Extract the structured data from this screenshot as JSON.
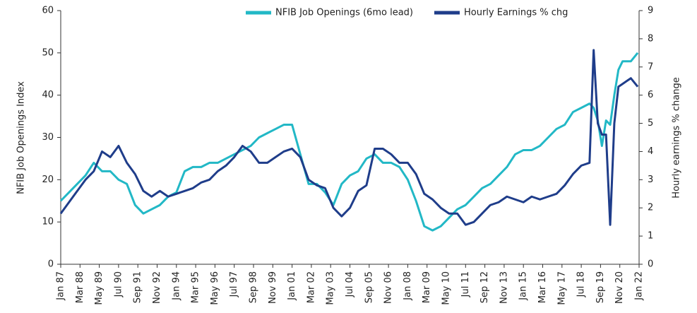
{
  "chart_data": {
    "type": "line",
    "ylabel": "NFIB Job Openings Index",
    "y2label": "Hourly earnings % change",
    "x": [
      "1987-01",
      "1987-07",
      "1988-01",
      "1988-07",
      "1989-01",
      "1989-07",
      "1990-01",
      "1990-07",
      "1991-01",
      "1991-07",
      "1992-01",
      "1992-07",
      "1993-01",
      "1993-07",
      "1994-01",
      "1994-07",
      "1995-01",
      "1995-07",
      "1996-01",
      "1996-07",
      "1997-01",
      "1997-07",
      "1998-01",
      "1998-07",
      "1999-01",
      "1999-07",
      "2000-01",
      "2000-07",
      "2001-01",
      "2001-07",
      "2002-01",
      "2002-07",
      "2003-01",
      "2003-07",
      "2004-01",
      "2004-07",
      "2005-01",
      "2005-07",
      "2006-01",
      "2006-07",
      "2007-01",
      "2007-07",
      "2008-01",
      "2008-07",
      "2009-01",
      "2009-07",
      "2010-01",
      "2010-07",
      "2011-01",
      "2011-07",
      "2012-01",
      "2012-07",
      "2013-01",
      "2013-07",
      "2014-01",
      "2014-07",
      "2015-01",
      "2015-07",
      "2016-01",
      "2016-07",
      "2017-01",
      "2017-07",
      "2018-01",
      "2018-07",
      "2019-01",
      "2019-04",
      "2019-07",
      "2019-10",
      "2020-01",
      "2020-04",
      "2020-07",
      "2020-10",
      "2021-01",
      "2021-07",
      "2021-12"
    ],
    "series": [
      {
        "name": "NFIB Job Openings (6mo lead)",
        "color": "#22b8c6",
        "axis": "y",
        "values": [
          15,
          17,
          19,
          21,
          24,
          22,
          22,
          20,
          19,
          14,
          12,
          13,
          14,
          16,
          17,
          22,
          23,
          23,
          24,
          24,
          25,
          26,
          27,
          28,
          30,
          31,
          32,
          33,
          33,
          26,
          19,
          19,
          17,
          14,
          19,
          21,
          22,
          25,
          26,
          24,
          24,
          23,
          20,
          15,
          9,
          8,
          9,
          11,
          13,
          14,
          16,
          18,
          19,
          21,
          23,
          26,
          27,
          27,
          28,
          30,
          32,
          33,
          36,
          37,
          38,
          37,
          34,
          28,
          34,
          33,
          40,
          46,
          48,
          48,
          50
        ]
      },
      {
        "name": "Hourly Earnings % chg",
        "color": "#1f3d8a",
        "axis": "y2",
        "values": [
          1.8,
          2.2,
          2.6,
          3.0,
          3.3,
          4.0,
          3.8,
          4.2,
          3.6,
          3.2,
          2.6,
          2.4,
          2.6,
          2.4,
          2.5,
          2.6,
          2.7,
          2.9,
          3.0,
          3.3,
          3.5,
          3.8,
          4.2,
          4.0,
          3.6,
          3.6,
          3.8,
          4.0,
          4.1,
          3.8,
          3.0,
          2.8,
          2.7,
          2.0,
          1.7,
          2.0,
          2.6,
          2.8,
          4.1,
          4.1,
          3.9,
          3.6,
          3.6,
          3.2,
          2.5,
          2.3,
          2.0,
          1.8,
          1.8,
          1.4,
          1.5,
          1.8,
          2.1,
          2.2,
          2.4,
          2.3,
          2.2,
          2.4,
          2.3,
          2.4,
          2.5,
          2.8,
          3.2,
          3.5,
          3.6,
          7.6,
          5.0,
          4.6,
          4.6,
          1.4,
          5.0,
          6.3,
          6.4,
          6.6,
          6.3
        ]
      }
    ],
    "xlim": [
      "1987-01",
      "2022-01"
    ],
    "xticks": [
      {
        "value": "1987-01",
        "label": "Jan 87"
      },
      {
        "value": "1988-03",
        "label": "Mar 88"
      },
      {
        "value": "1989-05",
        "label": "May 89"
      },
      {
        "value": "1990-07",
        "label": "Jul 90"
      },
      {
        "value": "1991-09",
        "label": "Sep 91"
      },
      {
        "value": "1992-11",
        "label": "Nov 92"
      },
      {
        "value": "1994-01",
        "label": "Jan 94"
      },
      {
        "value": "1995-03",
        "label": "Mar 95"
      },
      {
        "value": "1996-05",
        "label": "May 96"
      },
      {
        "value": "1997-07",
        "label": "Jul 97"
      },
      {
        "value": "1998-09",
        "label": "Sep 98"
      },
      {
        "value": "1999-11",
        "label": "Nov 99"
      },
      {
        "value": "2001-01",
        "label": "Jan 01"
      },
      {
        "value": "2002-03",
        "label": "Mar 02"
      },
      {
        "value": "2003-05",
        "label": "May 03"
      },
      {
        "value": "2004-07",
        "label": "Jul 04"
      },
      {
        "value": "2005-09",
        "label": "Sep 05"
      },
      {
        "value": "2006-11",
        "label": "Nov 06"
      },
      {
        "value": "2008-01",
        "label": "Jan 08"
      },
      {
        "value": "2009-03",
        "label": "Mar 09"
      },
      {
        "value": "2010-05",
        "label": "May 10"
      },
      {
        "value": "2011-07",
        "label": "Jul 11"
      },
      {
        "value": "2012-09",
        "label": "Sep 12"
      },
      {
        "value": "2013-11",
        "label": "Nov 13"
      },
      {
        "value": "2015-01",
        "label": "Jan 15"
      },
      {
        "value": "2016-03",
        "label": "Mar 16"
      },
      {
        "value": "2017-05",
        "label": "May 17"
      },
      {
        "value": "2018-07",
        "label": "Jul 18"
      },
      {
        "value": "2019-09",
        "label": "Sep 19"
      },
      {
        "value": "2020-11",
        "label": "Nov 20"
      },
      {
        "value": "2022-01",
        "label": "Jan 22"
      }
    ],
    "ylim": [
      0,
      60
    ],
    "yticks": [
      0,
      10,
      20,
      30,
      40,
      50,
      60
    ],
    "y2lim": [
      0,
      9
    ],
    "y2ticks": [
      0,
      1,
      2,
      3,
      4,
      5,
      6,
      7,
      8,
      9
    ],
    "legend": "top-right",
    "grid": false
  }
}
